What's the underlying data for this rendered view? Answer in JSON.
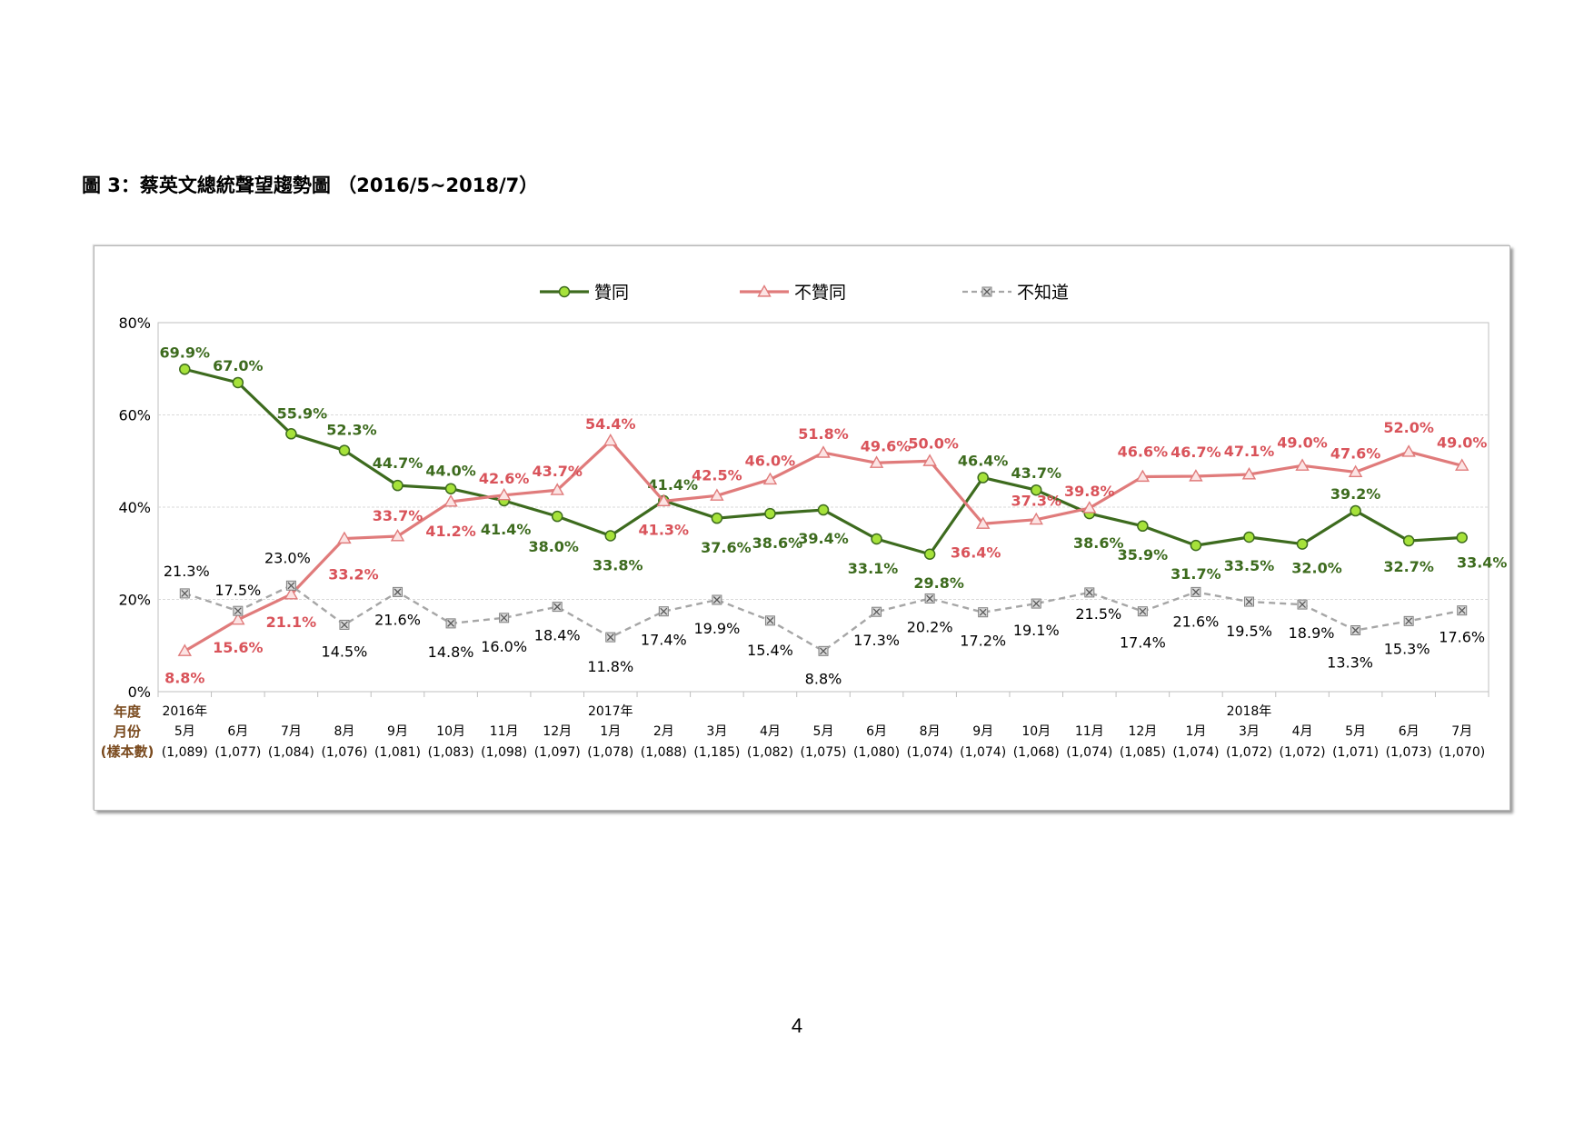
{
  "title": "圖 3：蔡英文總統聲望趨勢圖 （2016/5~2018/7）",
  "page_number": "4",
  "chart_data": {
    "type": "line",
    "ylim": [
      0,
      80
    ],
    "y_ticks": [
      "0%",
      "20%",
      "40%",
      "60%",
      "80%"
    ],
    "y_tick_values": [
      0,
      20,
      40,
      60,
      80
    ],
    "grid": true,
    "legend_position": "top-center",
    "row_labels": [
      "年度",
      "月份",
      "(樣本數)"
    ],
    "years": [
      "2016年",
      "",
      "",
      "",
      "",
      "",
      "",
      "",
      "2017年",
      "",
      "",
      "",
      "",
      "",
      "",
      "",
      "",
      "",
      "",
      "",
      "2018年",
      "",
      "",
      "",
      ""
    ],
    "months": [
      "5月",
      "6月",
      "7月",
      "8月",
      "9月",
      "10月",
      "11月",
      "12月",
      "1月",
      "2月",
      "3月",
      "4月",
      "5月",
      "6月",
      "8月",
      "9月",
      "10月",
      "11月",
      "12月",
      "1月",
      "3月",
      "4月",
      "5月",
      "6月",
      "7月"
    ],
    "samples": [
      "(1,089)",
      "(1,077)",
      "(1,084)",
      "(1,076)",
      "(1,081)",
      "(1,083)",
      "(1,098)",
      "(1,097)",
      "(1,078)",
      "(1,088)",
      "(1,185)",
      "(1,082)",
      "(1,075)",
      "(1,080)",
      "(1,074)",
      "(1,074)",
      "(1,068)",
      "(1,074)",
      "(1,085)",
      "(1,074)",
      "(1,072)",
      "(1,072)",
      "(1,071)",
      "(1,073)",
      "(1,070)"
    ],
    "series": [
      {
        "name": "贊同",
        "color": "#3d6b1e",
        "marker_fill": "#a6e23a",
        "marker": "circle",
        "values": [
          69.9,
          67.0,
          55.9,
          52.3,
          44.7,
          44.0,
          41.4,
          38.0,
          33.8,
          41.4,
          37.6,
          38.6,
          39.4,
          33.1,
          29.8,
          46.4,
          43.7,
          38.6,
          35.9,
          31.7,
          33.5,
          32.0,
          39.2,
          32.7,
          33.4
        ],
        "labels": [
          "69.9%",
          "67.0%",
          "55.9%",
          "52.3%",
          "44.7%",
          "44.0%",
          "41.4%",
          "38.0%",
          "33.8%",
          "41.4%",
          "37.6%",
          "38.6%",
          "39.4%",
          "33.1%",
          "29.8%",
          "46.4%",
          "43.7%",
          "38.6%",
          "35.9%",
          "31.7%",
          "33.5%",
          "32.0%",
          "39.2%",
          "32.7%",
          "33.4%"
        ]
      },
      {
        "name": "不贊同",
        "color": "#e07b7b",
        "marker_fill": "#fce4e4",
        "marker": "triangle",
        "values": [
          8.8,
          15.6,
          21.1,
          33.2,
          33.7,
          41.2,
          42.6,
          43.7,
          54.4,
          41.3,
          42.5,
          46.0,
          51.8,
          49.6,
          50.0,
          36.4,
          37.3,
          39.8,
          46.6,
          46.7,
          47.1,
          49.0,
          47.6,
          52.0,
          49.0
        ],
        "labels": [
          "8.8%",
          "15.6%",
          "21.1%",
          "33.2%",
          "33.7%",
          "41.2%",
          "42.6%",
          "43.7%",
          "54.4%",
          "41.3%",
          "42.5%",
          "46.0%",
          "51.8%",
          "49.6%",
          "50.0%",
          "36.4%",
          "37.3%",
          "39.8%",
          "46.6%",
          "46.7%",
          "47.1%",
          "49.0%",
          "47.6%",
          "52.0%",
          "49.0%"
        ]
      },
      {
        "name": "不知道",
        "color": "#a6a6a6",
        "marker_fill": "#d9d9d9",
        "marker": "x-square",
        "values": [
          21.3,
          17.5,
          23.0,
          14.5,
          21.6,
          14.8,
          16.0,
          18.4,
          11.8,
          17.4,
          19.9,
          15.4,
          8.8,
          17.3,
          20.2,
          17.2,
          19.1,
          21.5,
          17.4,
          21.6,
          19.5,
          18.9,
          13.3,
          15.3,
          17.6
        ],
        "labels": [
          "21.3%",
          "17.5%",
          "23.0%",
          "14.5%",
          "21.6%",
          "14.8%",
          "16.0%",
          "18.4%",
          "11.8%",
          "17.4%",
          "19.9%",
          "15.4%",
          "8.8%",
          "17.3%",
          "20.2%",
          "17.2%",
          "19.1%",
          "21.5%",
          "17.4%",
          "21.6%",
          "19.5%",
          "18.9%",
          "13.3%",
          "15.3%",
          "17.6%"
        ]
      }
    ]
  }
}
